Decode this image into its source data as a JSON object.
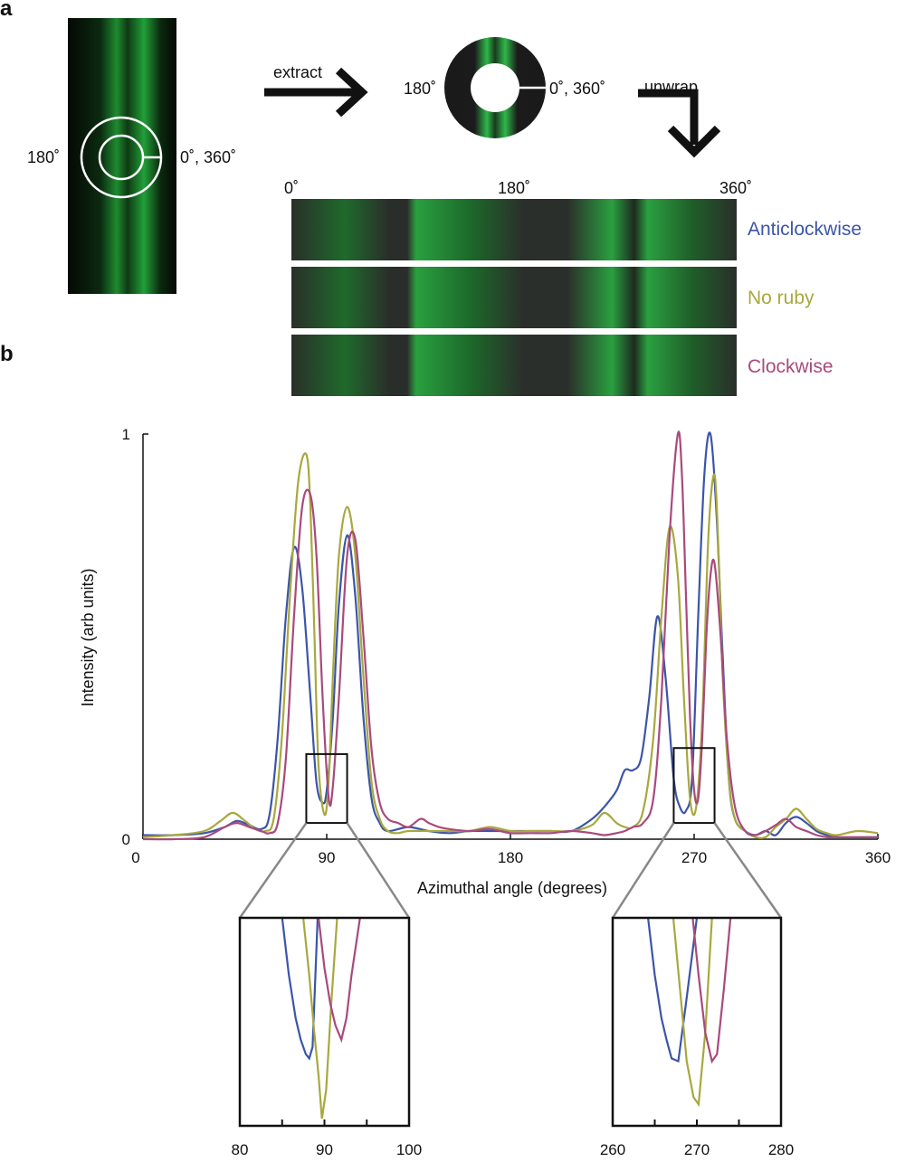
{
  "panels": {
    "a": "a",
    "b": "b"
  },
  "top": {
    "left_ring": {
      "label_180": "180˚",
      "label_0": "0˚, 360˚"
    },
    "extract_label": "extract",
    "unwrap_label": "unwrap",
    "ring": {
      "label_180": "180˚",
      "label_0": "0˚, 360˚"
    },
    "unwrap_ticks": [
      "0˚",
      "180˚",
      "360˚"
    ],
    "strips": [
      {
        "name": "Anticlockwise",
        "color": "#3b55a8"
      },
      {
        "name": "No ruby",
        "color": "#a8a83f"
      },
      {
        "name": "Clockwise",
        "color": "#a84a7c"
      }
    ]
  },
  "chart_data": [
    {
      "type": "line",
      "xlabel": "Azimuthal angle (degrees)",
      "ylabel": "Intensity (arb units)",
      "xlim": [
        0,
        360
      ],
      "ylim": [
        0,
        1
      ],
      "xticks": [
        0,
        90,
        180,
        270,
        360
      ],
      "yticks": [
        0,
        1
      ],
      "series": [
        {
          "name": "Anticlockwise",
          "color": "#3b55a8",
          "x": [
            0,
            15,
            30,
            40,
            46,
            52,
            58,
            62,
            66,
            70,
            74,
            78,
            82,
            85,
            88,
            90,
            93,
            96,
            100,
            104,
            108,
            112,
            116,
            120,
            130,
            140,
            150,
            160,
            170,
            180,
            190,
            200,
            210,
            220,
            226,
            232,
            236,
            240,
            244,
            248,
            252,
            256,
            260,
            263,
            266,
            269,
            272,
            275,
            278,
            281,
            284,
            287,
            290,
            295,
            300,
            305,
            310,
            315,
            320,
            325,
            330,
            335,
            340,
            360
          ],
          "y": [
            0.01,
            0.01,
            0.015,
            0.03,
            0.045,
            0.035,
            0.025,
            0.06,
            0.25,
            0.55,
            0.72,
            0.62,
            0.35,
            0.14,
            0.09,
            0.12,
            0.3,
            0.58,
            0.75,
            0.6,
            0.3,
            0.1,
            0.04,
            0.02,
            0.03,
            0.02,
            0.015,
            0.02,
            0.02,
            0.02,
            0.02,
            0.02,
            0.02,
            0.05,
            0.08,
            0.12,
            0.17,
            0.17,
            0.2,
            0.35,
            0.55,
            0.4,
            0.15,
            0.08,
            0.07,
            0.15,
            0.55,
            0.9,
            1.0,
            0.8,
            0.45,
            0.15,
            0.05,
            0.02,
            0.01,
            0.02,
            0.01,
            0.04,
            0.055,
            0.04,
            0.02,
            0.01,
            0.005,
            0.005
          ]
        },
        {
          "name": "No ruby",
          "color": "#a8a83f",
          "x": [
            0,
            15,
            30,
            38,
            44,
            50,
            55,
            60,
            64,
            68,
            72,
            76,
            80,
            82,
            84,
            86,
            89,
            91,
            93,
            96,
            100,
            104,
            108,
            112,
            116,
            120,
            125,
            130,
            140,
            150,
            160,
            170,
            180,
            190,
            200,
            210,
            220,
            226,
            232,
            236,
            240,
            245,
            250,
            254,
            258,
            262,
            265,
            268,
            271,
            274,
            277,
            280,
            282,
            284,
            287,
            290,
            295,
            300,
            305,
            310,
            315,
            320,
            325,
            330,
            335,
            340,
            350,
            360
          ],
          "y": [
            0.005,
            0.01,
            0.02,
            0.045,
            0.065,
            0.045,
            0.025,
            0.02,
            0.05,
            0.25,
            0.6,
            0.88,
            0.95,
            0.82,
            0.5,
            0.18,
            0.06,
            0.15,
            0.4,
            0.7,
            0.82,
            0.7,
            0.4,
            0.14,
            0.05,
            0.02,
            0.015,
            0.02,
            0.02,
            0.02,
            0.02,
            0.03,
            0.02,
            0.02,
            0.02,
            0.02,
            0.035,
            0.065,
            0.04,
            0.03,
            0.03,
            0.07,
            0.25,
            0.55,
            0.77,
            0.65,
            0.35,
            0.1,
            0.08,
            0.3,
            0.75,
            0.9,
            0.7,
            0.4,
            0.15,
            0.05,
            0.02,
            0.005,
            0.005,
            0.03,
            0.05,
            0.075,
            0.05,
            0.025,
            0.015,
            0.01,
            0.02,
            0.015
          ]
        },
        {
          "name": "Clockwise",
          "color": "#a84a7c",
          "x": [
            0,
            15,
            30,
            40,
            46,
            52,
            58,
            62,
            66,
            70,
            74,
            78,
            82,
            85,
            88,
            91,
            93,
            96,
            100,
            104,
            108,
            112,
            116,
            120,
            125,
            130,
            136,
            140,
            145,
            150,
            160,
            170,
            180,
            190,
            200,
            210,
            220,
            226,
            232,
            236,
            240,
            245,
            250,
            254,
            258,
            262,
            264,
            266,
            268,
            270,
            272,
            274,
            276,
            278,
            280,
            283,
            286,
            290,
            295,
            300,
            305,
            310,
            315,
            320,
            325,
            330,
            335,
            340,
            360
          ],
          "y": [
            0.0,
            0.0,
            0.005,
            0.03,
            0.04,
            0.03,
            0.02,
            0.015,
            0.04,
            0.2,
            0.55,
            0.82,
            0.85,
            0.7,
            0.35,
            0.1,
            0.13,
            0.35,
            0.7,
            0.74,
            0.5,
            0.22,
            0.09,
            0.05,
            0.04,
            0.03,
            0.05,
            0.04,
            0.03,
            0.025,
            0.02,
            0.025,
            0.015,
            0.015,
            0.015,
            0.02,
            0.015,
            0.01,
            0.015,
            0.02,
            0.03,
            0.04,
            0.1,
            0.35,
            0.75,
            1.0,
            0.9,
            0.6,
            0.3,
            0.12,
            0.1,
            0.25,
            0.5,
            0.65,
            0.68,
            0.5,
            0.25,
            0.08,
            0.02,
            0.01,
            0.02,
            0.035,
            0.05,
            0.03,
            0.02,
            0.01,
            0.005,
            0.005,
            0.005
          ]
        }
      ]
    },
    {
      "type": "line",
      "xlim": [
        80,
        100
      ],
      "xticks": [
        80,
        90,
        100
      ],
      "series": [
        {
          "name": "Anticlockwise",
          "color": "#3b55a8",
          "x": [
            85,
            85.8,
            86.6,
            87.2,
            87.8,
            88.2,
            88.6,
            89.2
          ],
          "y": [
            0.2,
            0.16,
            0.13,
            0.115,
            0.105,
            0.102,
            0.11,
            0.2
          ]
        },
        {
          "name": "No ruby",
          "color": "#a8a83f",
          "x": [
            87.5,
            88.2,
            88.8,
            89.3,
            89.7,
            90.2,
            90.8,
            91.5
          ],
          "y": [
            0.2,
            0.16,
            0.12,
            0.09,
            0.06,
            0.08,
            0.14,
            0.2
          ]
        },
        {
          "name": "Clockwise",
          "color": "#a84a7c",
          "x": [
            89.3,
            90,
            90.7,
            91.3,
            92,
            92.6,
            93.2,
            94.2
          ],
          "y": [
            0.2,
            0.165,
            0.14,
            0.125,
            0.115,
            0.13,
            0.16,
            0.2
          ]
        }
      ]
    },
    {
      "type": "line",
      "xlim": [
        260,
        280
      ],
      "xticks": [
        260,
        270,
        280
      ],
      "series": [
        {
          "name": "Anticlockwise",
          "color": "#3b55a8",
          "x": [
            264.2,
            265,
            265.8,
            266.4,
            267,
            267.8,
            268.7,
            270
          ],
          "y": [
            0.2,
            0.16,
            0.13,
            0.115,
            0.102,
            0.1,
            0.14,
            0.2
          ]
        },
        {
          "name": "No ruby",
          "color": "#a8a83f",
          "x": [
            267.2,
            268,
            268.8,
            269.6,
            270.2,
            271,
            271.8
          ],
          "y": [
            0.2,
            0.15,
            0.1,
            0.075,
            0.07,
            0.12,
            0.2
          ]
        },
        {
          "name": "Clockwise",
          "color": "#a84a7c",
          "x": [
            269.5,
            270.2,
            271,
            271.8,
            272.4,
            273.2,
            274
          ],
          "y": [
            0.2,
            0.16,
            0.12,
            0.1,
            0.105,
            0.15,
            0.2
          ]
        }
      ]
    }
  ]
}
